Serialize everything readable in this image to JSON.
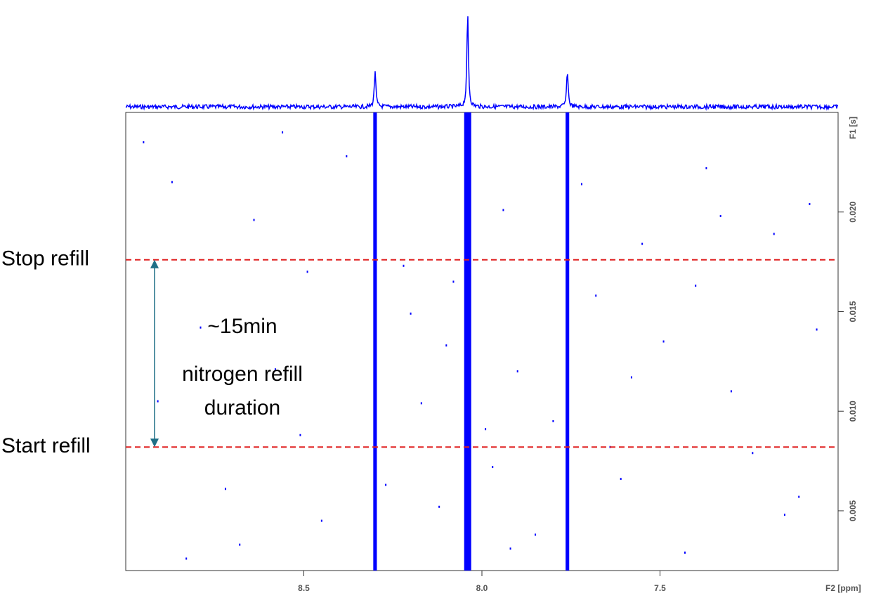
{
  "chart_data": {
    "type": "nmr2d",
    "x_label": "F2 [ppm]",
    "y_label": "F1 [s]",
    "xlim": [
      9.0,
      7.0
    ],
    "ylim": [
      0.002,
      0.025
    ],
    "xticks": [
      8.5,
      {
        "value": 8,
        "label": "8.0"
      },
      7.5
    ],
    "yticks": [
      {
        "value": 0.02,
        "label": "0.020"
      },
      0.015,
      {
        "value": 0.01,
        "label": "0.010"
      },
      0.005
    ],
    "color": "#0000ff",
    "peaks": {
      "x": [
        8.3,
        8.04,
        7.76
      ],
      "intensities": [
        0.39,
        1.0,
        0.39
      ]
    },
    "noise": {
      "x": [
        8.95,
        8.87,
        8.79,
        8.72,
        8.64,
        8.58,
        8.51,
        8.45,
        8.38,
        8.22,
        8.17,
        8.12,
        8.08,
        8.1,
        7.99,
        7.97,
        7.94,
        7.9,
        7.85,
        7.72,
        7.68,
        7.61,
        7.55,
        7.49,
        7.43,
        7.37,
        7.3,
        7.24,
        7.18,
        7.11,
        7.06,
        8.91,
        8.68,
        8.49,
        8.27,
        7.8,
        7.58,
        7.33,
        7.15,
        8.83,
        8.56,
        8.2,
        7.92,
        7.64,
        7.4,
        7.08
      ],
      "y": [
        0.0235,
        0.0215,
        0.0142,
        0.0061,
        0.0196,
        0.0121,
        0.0088,
        0.0045,
        0.0228,
        0.0173,
        0.0104,
        0.0052,
        0.0165,
        0.0133,
        0.0091,
        0.0072,
        0.0201,
        0.012,
        0.0038,
        0.0214,
        0.0158,
        0.0066,
        0.0184,
        0.0135,
        0.0029,
        0.0222,
        0.011,
        0.0079,
        0.0189,
        0.0057,
        0.0141,
        0.0105,
        0.0033,
        0.017,
        0.0063,
        0.0095,
        0.0117,
        0.0198,
        0.0048,
        0.0026,
        0.024,
        0.0149,
        0.0031,
        0.0082,
        0.0163,
        0.0204
      ]
    },
    "reference_lines": [
      {
        "value": 0.0176,
        "label": "Stop refill"
      },
      {
        "value": 0.0082,
        "label": "Start refill"
      }
    ],
    "reference_color": "#e02020",
    "interval_color": "#1f6f86",
    "interval_label": "~15min",
    "interval_note": [
      "nitrogen refill",
      "duration"
    ]
  }
}
